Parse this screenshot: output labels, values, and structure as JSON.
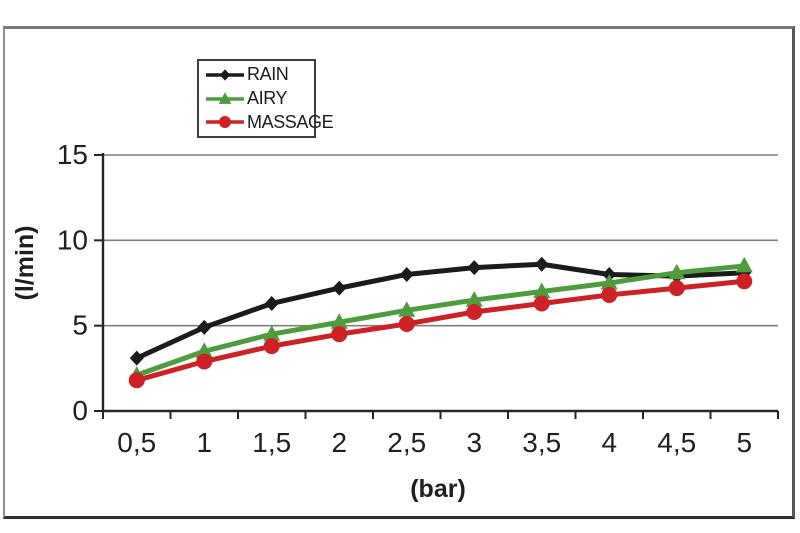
{
  "chart_data": {
    "type": "line",
    "title": "",
    "xlabel": "(bar)",
    "ylabel": "(l/min)",
    "x": [
      0.5,
      1,
      1.5,
      2,
      2.5,
      3,
      3.5,
      4,
      4.5,
      5
    ],
    "x_tick_labels": [
      "0,5",
      "1",
      "1,5",
      "2",
      "2,5",
      "3",
      "3,5",
      "4",
      "4,5",
      "5"
    ],
    "y_ticks": [
      0,
      5,
      10,
      15
    ],
    "y_tick_labels": [
      "0",
      "5",
      "10",
      "15"
    ],
    "ylim": [
      0,
      15
    ],
    "grid": "horizontal-gridlines",
    "legend_position": "top-left-inside",
    "series": [
      {
        "name": "RAIN",
        "color": "#1b1b1b",
        "marker": "diamond",
        "values": [
          3.1,
          4.9,
          6.3,
          7.2,
          8.0,
          8.4,
          8.6,
          8.0,
          7.9,
          8.1
        ]
      },
      {
        "name": "AIRY",
        "color": "#4f9c3e",
        "marker": "triangle",
        "values": [
          2.1,
          3.5,
          4.5,
          5.2,
          5.9,
          6.5,
          7.0,
          7.5,
          8.1,
          8.5
        ]
      },
      {
        "name": "MASSAGE",
        "color": "#cc2127",
        "marker": "circle",
        "values": [
          1.8,
          2.9,
          3.8,
          4.5,
          5.1,
          5.8,
          6.3,
          6.8,
          7.2,
          7.6
        ]
      }
    ],
    "colors": {
      "background": "#ffffff",
      "plot_background": "#ffffff",
      "gridline": "#7f7f7f",
      "axis": "#262626",
      "tick_label": "#1f1f1f",
      "frame_border": "#6e6e6e",
      "legend_border": "#3d3d3d"
    }
  }
}
